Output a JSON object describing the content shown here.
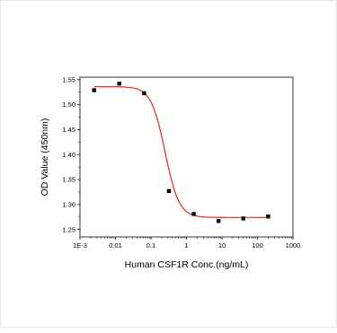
{
  "chart_data": {
    "type": "scatter",
    "title": "",
    "xlabel": "Human CSF1R Conc.(ng/mL)",
    "ylabel": "OD Value (450nm)",
    "x_scale": "log",
    "xlim": [
      0.001,
      1000
    ],
    "ylim": [
      1.235,
      1.555
    ],
    "x_ticks": [
      {
        "value": 0.001,
        "label": "1E-3"
      },
      {
        "value": 0.01,
        "label": "0.01"
      },
      {
        "value": 0.1,
        "label": "0.1"
      },
      {
        "value": 1,
        "label": "1"
      },
      {
        "value": 10,
        "label": "10"
      },
      {
        "value": 100,
        "label": "100"
      },
      {
        "value": 1000,
        "label": "1000"
      }
    ],
    "y_ticks": [
      {
        "value": 1.25,
        "label": "1.25"
      },
      {
        "value": 1.3,
        "label": "1.30"
      },
      {
        "value": 1.35,
        "label": "1.35"
      },
      {
        "value": 1.4,
        "label": "1.40"
      },
      {
        "value": 1.45,
        "label": "1.45"
      },
      {
        "value": 1.5,
        "label": "1.50"
      },
      {
        "value": 1.55,
        "label": "1.55"
      }
    ],
    "grid": false,
    "legend": "none",
    "series": [
      {
        "marker": "square",
        "color": "#000000",
        "points": [
          {
            "x": 0.0025,
            "y": 1.529
          },
          {
            "x": 0.0128,
            "y": 1.542
          },
          {
            "x": 0.064,
            "y": 1.523
          },
          {
            "x": 0.32,
            "y": 1.327
          },
          {
            "x": 1.6,
            "y": 1.281
          },
          {
            "x": 8,
            "y": 1.267
          },
          {
            "x": 40,
            "y": 1.272
          },
          {
            "x": 200,
            "y": 1.276
          }
        ]
      }
    ],
    "fit_curve": {
      "model": "4PL",
      "color": "#e8261c",
      "top": 1.536,
      "bottom": 1.274,
      "ec50": 0.25,
      "hill": 2.2,
      "x_from": 0.0025,
      "x_to": 200
    }
  }
}
